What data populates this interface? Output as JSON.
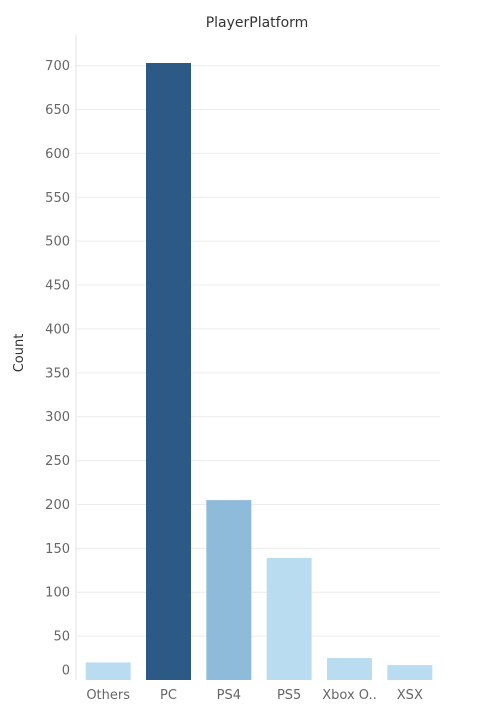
{
  "chart_data": {
    "type": "bar",
    "title": "PlayerPlatform",
    "ylabel": "Count",
    "xlabel": "",
    "categories": [
      "Others",
      "PC",
      "PS4",
      "PS5",
      "Xbox O..",
      "XSX"
    ],
    "values": [
      20,
      703,
      205,
      139,
      25,
      17
    ],
    "bar_colors": [
      "#b9dcf0",
      "#2c5985",
      "#8fbbdb",
      "#b9dcf0",
      "#b9dcf0",
      "#b9dcf0"
    ],
    "yticks": [
      0,
      50,
      100,
      150,
      200,
      250,
      300,
      350,
      400,
      450,
      500,
      550,
      600,
      650,
      700
    ],
    "ylim": [
      0,
      703
    ],
    "grid": true,
    "legend": "none"
  }
}
